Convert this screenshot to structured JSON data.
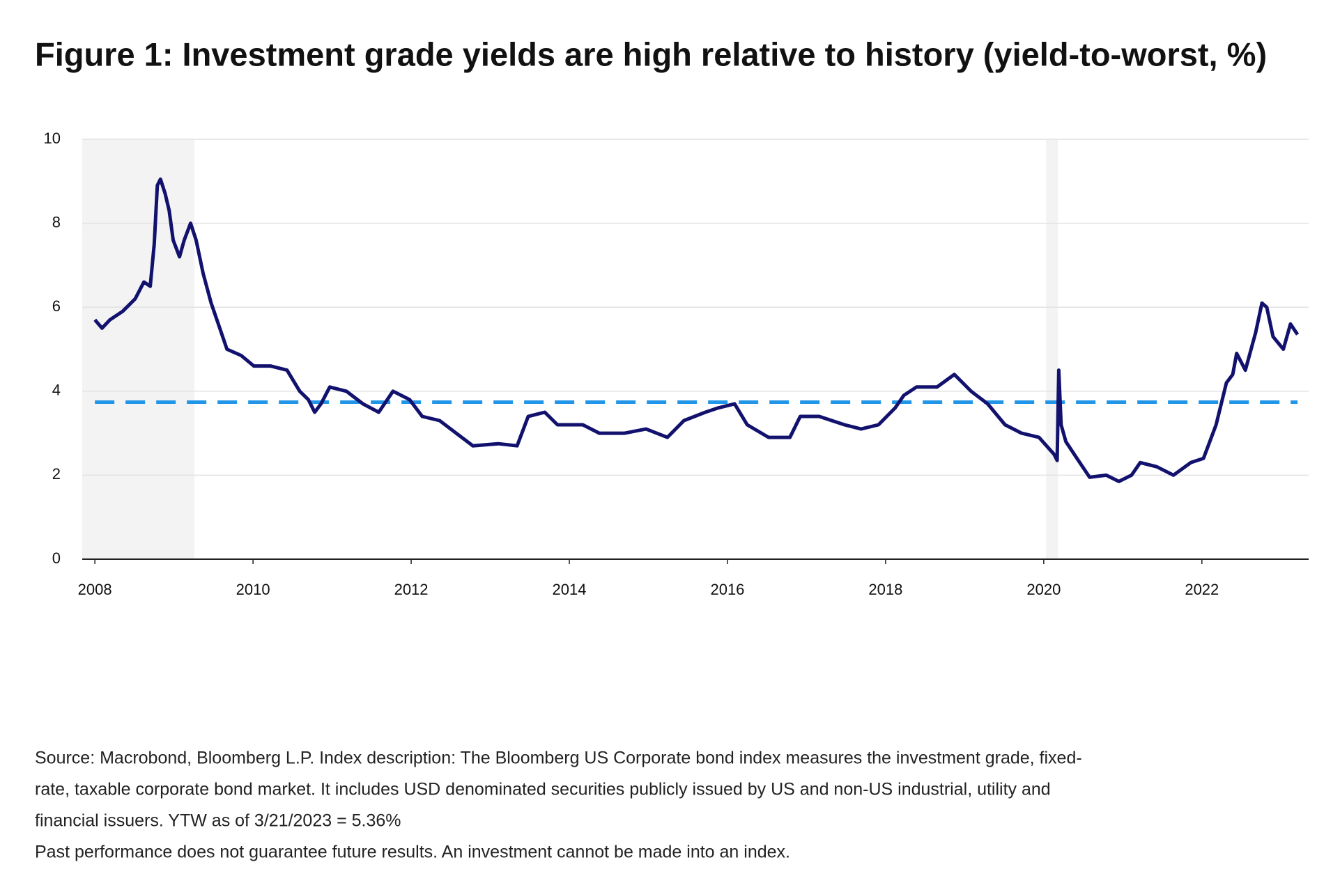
{
  "chart_data": {
    "type": "line",
    "title": "Figure 1: Investment grade yields are high relative to history (yield-to-worst, %)",
    "x": [
      2008.0,
      2008.09,
      2008.19,
      2008.35,
      2008.51,
      2008.62,
      2008.7,
      2008.75,
      2008.79,
      2008.83,
      2008.89,
      2008.94,
      2008.99,
      2009.07,
      2009.13,
      2009.21,
      2009.28,
      2009.37,
      2009.47,
      2009.58,
      2009.67,
      2009.85,
      2010.01,
      2010.22,
      2010.43,
      2010.59,
      2010.7,
      2010.78,
      2010.86,
      2010.97,
      2011.18,
      2011.39,
      2011.59,
      2011.77,
      2011.98,
      2012.14,
      2012.36,
      2012.57,
      2012.78,
      2013.1,
      2013.34,
      2013.48,
      2013.69,
      2013.85,
      2014.17,
      2014.38,
      2014.7,
      2014.97,
      2015.24,
      2015.45,
      2015.72,
      2015.88,
      2016.09,
      2016.25,
      2016.52,
      2016.79,
      2016.92,
      2017.16,
      2017.48,
      2017.69,
      2017.91,
      2018.12,
      2018.23,
      2018.39,
      2018.65,
      2018.87,
      2019.08,
      2019.29,
      2019.51,
      2019.72,
      2019.94,
      2020.13,
      2020.17,
      2020.19,
      2020.22,
      2020.28,
      2020.42,
      2020.58,
      2020.79,
      2020.95,
      2021.11,
      2021.22,
      2021.43,
      2021.64,
      2021.86,
      2022.02,
      2022.18,
      2022.31,
      2022.39,
      2022.44,
      2022.55,
      2022.68,
      2022.76,
      2022.82,
      2022.9,
      2023.03,
      2023.12,
      2023.21
    ],
    "series": [
      {
        "name": "Yield-to-worst",
        "color": "#12126e",
        "values": [
          5.7,
          5.5,
          5.7,
          5.9,
          6.2,
          6.6,
          6.5,
          7.5,
          8.9,
          9.05,
          8.7,
          8.3,
          7.6,
          7.2,
          7.6,
          8.0,
          7.6,
          6.8,
          6.1,
          5.5,
          5.0,
          4.85,
          4.6,
          4.6,
          4.5,
          4.0,
          3.8,
          3.5,
          3.7,
          4.1,
          4.0,
          3.7,
          3.5,
          4.0,
          3.8,
          3.4,
          3.3,
          3.0,
          2.7,
          2.75,
          2.7,
          3.4,
          3.5,
          3.2,
          3.2,
          3.0,
          3.0,
          3.1,
          2.9,
          3.3,
          3.5,
          3.6,
          3.7,
          3.2,
          2.9,
          2.9,
          3.4,
          3.4,
          3.2,
          3.1,
          3.2,
          3.6,
          3.9,
          4.1,
          4.1,
          4.4,
          4.0,
          3.7,
          3.2,
          3.0,
          2.9,
          2.5,
          2.35,
          4.5,
          3.2,
          2.8,
          2.4,
          1.95,
          2.0,
          1.85,
          2.0,
          2.3,
          2.2,
          2.0,
          2.3,
          2.4,
          3.2,
          4.2,
          4.4,
          4.9,
          4.5,
          5.4,
          6.1,
          6.0,
          5.3,
          5.0,
          5.6,
          5.35
        ]
      }
    ],
    "reference_line": {
      "value": 3.74,
      "color": "#2196e8"
    },
    "shaded_periods": [
      [
        2007.84,
        2009.26
      ],
      [
        2020.03,
        2020.18
      ]
    ],
    "xlim": [
      2007.84,
      2023.35
    ],
    "xticks": [
      2008,
      2010,
      2012,
      2014,
      2016,
      2018,
      2020,
      2022
    ],
    "ylim": [
      0,
      10
    ],
    "yticks": [
      0,
      2,
      4,
      6,
      8,
      10
    ],
    "grid": true,
    "footnote": [
      "Source: Macrobond, Bloomberg L.P. Index description: The Bloomberg US Corporate bond index measures the investment grade, fixed-",
      "rate, taxable corporate bond market. It includes USD denominated securities publicly issued by US and non-US industrial, utility and",
      "financial issuers. YTW as of 3/21/2023 = 5.36%",
      "Past performance does not guarantee future results. An investment cannot be made into an index."
    ]
  }
}
